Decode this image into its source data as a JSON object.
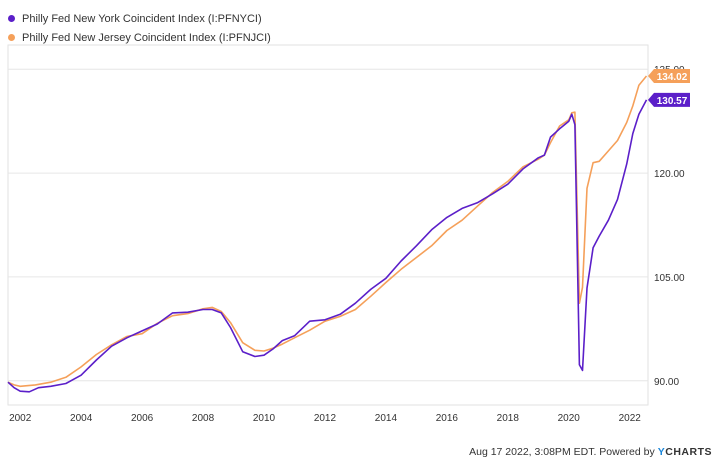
{
  "legend": [
    {
      "label": "Philly Fed New York Coincident Index (I:PFNYCI)",
      "color": "#5b1fc9"
    },
    {
      "label": "Philly Fed New Jersey Coincident Index (I:PFNJCI)",
      "color": "#f5a05a"
    }
  ],
  "footer": {
    "timestamp": "Aug 17 2022, 3:08PM EDT.",
    "powered_by": "Powered by",
    "brand_y": "Y",
    "brand_rest": "CHARTS"
  },
  "chart_data": {
    "type": "line",
    "title": "",
    "xlabel": "",
    "ylabel": "",
    "xlim": [
      2001.6,
      2022.6
    ],
    "ylim": [
      86.5,
      138.5
    ],
    "x_ticks": [
      "2002",
      "2004",
      "2006",
      "2008",
      "2010",
      "2012",
      "2014",
      "2016",
      "2018",
      "2020",
      "2022"
    ],
    "y_ticks": [
      "90.00",
      "105.00",
      "120.00",
      "135.00"
    ],
    "grid": true,
    "legend_position": "top-left",
    "series": [
      {
        "name": "Philly Fed New York Coincident Index (I:PFNYCI)",
        "color": "#5b1fc9",
        "last_value_label": "130.57",
        "x": [
          2001.6,
          2001.8,
          2002.0,
          2002.3,
          2002.6,
          2003.0,
          2003.5,
          2004.0,
          2004.5,
          2005.0,
          2005.5,
          2006.0,
          2006.5,
          2007.0,
          2007.5,
          2008.0,
          2008.3,
          2008.6,
          2008.9,
          2009.3,
          2009.7,
          2010.0,
          2010.3,
          2010.6,
          2011.0,
          2011.5,
          2012.0,
          2012.5,
          2013.0,
          2013.5,
          2014.0,
          2014.5,
          2015.0,
          2015.5,
          2016.0,
          2016.5,
          2017.0,
          2017.5,
          2018.0,
          2018.5,
          2019.0,
          2019.2,
          2019.4,
          2019.7,
          2020.0,
          2020.1,
          2020.2,
          2020.35,
          2020.45,
          2020.6,
          2020.8,
          2021.0,
          2021.3,
          2021.6,
          2021.9,
          2022.1,
          2022.3,
          2022.55
        ],
        "values": [
          89.8,
          89.0,
          88.5,
          88.4,
          89.0,
          89.2,
          89.6,
          90.8,
          93.0,
          95.0,
          96.2,
          97.2,
          98.2,
          99.8,
          99.9,
          100.3,
          100.3,
          99.8,
          97.7,
          94.2,
          93.5,
          93.7,
          94.6,
          95.8,
          96.5,
          98.6,
          98.8,
          99.6,
          101.2,
          103.2,
          104.8,
          107.3,
          109.5,
          111.8,
          113.6,
          114.9,
          115.7,
          117.0,
          118.4,
          120.6,
          122.2,
          122.6,
          125.2,
          126.4,
          127.5,
          128.5,
          127.0,
          92.3,
          91.5,
          103.4,
          109.2,
          110.9,
          113.2,
          116.2,
          121.3,
          125.7,
          128.5,
          130.57
        ]
      },
      {
        "name": "Philly Fed New Jersey Coincident Index (I:PFNJCI)",
        "color": "#f5a05a",
        "last_value_label": "134.02",
        "x": [
          2001.6,
          2001.8,
          2002.0,
          2002.5,
          2003.0,
          2003.5,
          2004.0,
          2004.5,
          2005.0,
          2005.5,
          2006.0,
          2006.5,
          2007.0,
          2007.5,
          2008.0,
          2008.3,
          2008.6,
          2008.9,
          2009.3,
          2009.7,
          2010.0,
          2010.3,
          2010.6,
          2011.0,
          2011.5,
          2012.0,
          2012.5,
          2013.0,
          2013.5,
          2014.0,
          2014.5,
          2015.0,
          2015.5,
          2016.0,
          2016.5,
          2017.0,
          2017.5,
          2018.0,
          2018.5,
          2019.0,
          2019.2,
          2019.4,
          2019.7,
          2020.0,
          2020.1,
          2020.2,
          2020.35,
          2020.45,
          2020.6,
          2020.8,
          2021.0,
          2021.3,
          2021.6,
          2021.9,
          2022.1,
          2022.3,
          2022.55
        ],
        "values": [
          89.8,
          89.4,
          89.2,
          89.4,
          89.8,
          90.5,
          92.0,
          93.8,
          95.2,
          96.4,
          96.8,
          98.3,
          99.4,
          99.7,
          100.4,
          100.6,
          100.0,
          98.4,
          95.5,
          94.4,
          94.3,
          94.7,
          95.3,
          96.2,
          97.3,
          98.6,
          99.3,
          100.3,
          102.2,
          104.2,
          106.1,
          107.8,
          109.5,
          111.7,
          113.2,
          115.2,
          117.2,
          118.8,
          120.9,
          122.0,
          122.6,
          124.4,
          126.8,
          127.7,
          128.7,
          128.8,
          101.2,
          103.5,
          117.8,
          121.5,
          121.7,
          123.2,
          124.7,
          127.3,
          129.7,
          132.7,
          134.02
        ]
      }
    ]
  }
}
